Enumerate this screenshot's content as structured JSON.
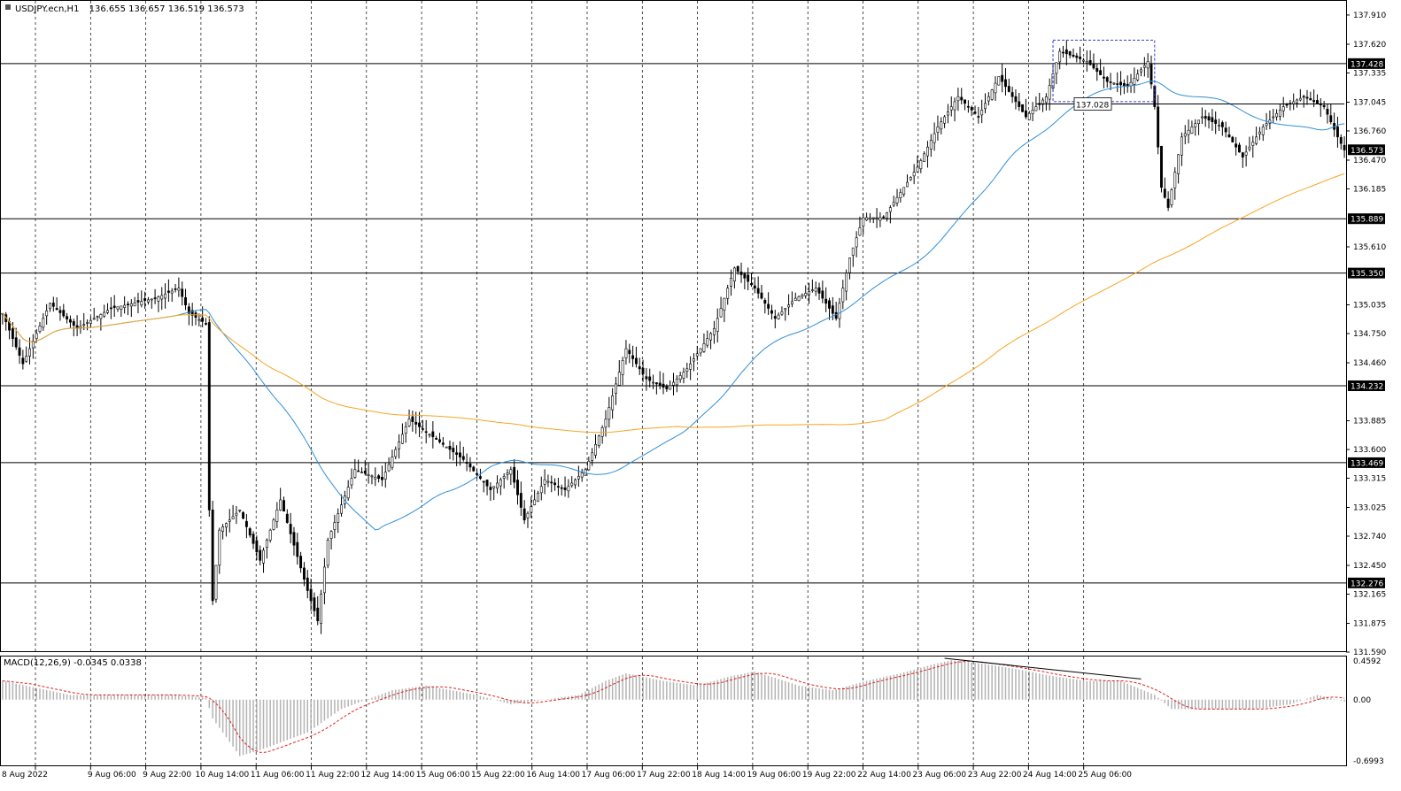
{
  "header": {
    "symbol_label": "USDJPY.ecn,H1",
    "ohlc_text": "136.655 136.657 136.519 136.573"
  },
  "macd": {
    "label": "MACD(12,26,9) -0.0345 0.0338",
    "axis_labels": [
      "0.4592",
      "0.00",
      "-0.6993"
    ]
  },
  "colors": {
    "background": "#ffffff",
    "grid": "#000000",
    "candle_up": "#ffffff",
    "candle_down": "#000000",
    "ma_fast": "#2f8fd8",
    "ma_slow": "#f5a623",
    "macd_hist": "#b3b3b3",
    "macd_signal": "#e02020",
    "box": "#3a3ad8"
  },
  "chart_data": {
    "type": "candlestick",
    "instrument": "USDJPY.ecn",
    "timeframe": "H1",
    "ylim": [
      131.59,
      138.05
    ],
    "price_axis_ticks": [
      "137.910",
      "137.620",
      "137.335",
      "137.045",
      "136.760",
      "136.470",
      "136.185",
      "135.610",
      "135.035",
      "134.750",
      "134.460",
      "133.885",
      "133.600",
      "133.315",
      "133.025",
      "132.740",
      "132.450",
      "132.165",
      "131.875",
      "131.590"
    ],
    "x_labels": [
      "8 Aug 2022",
      "9 Aug 06:00",
      "9 Aug 22:00",
      "10 Aug 14:00",
      "11 Aug 06:00",
      "11 Aug 22:00",
      "12 Aug 14:00",
      "15 Aug 06:00",
      "15 Aug 22:00",
      "16 Aug 14:00",
      "17 Aug 06:00",
      "17 Aug 22:00",
      "18 Aug 14:00",
      "19 Aug 06:00",
      "19 Aug 22:00",
      "22 Aug 14:00",
      "23 Aug 06:00",
      "23 Aug 22:00",
      "24 Aug 14:00",
      "25 Aug 06:00"
    ],
    "horizontal_levels": [
      {
        "price": 137.428,
        "label": "137.428"
      },
      {
        "price": 135.889,
        "label": "135.889"
      },
      {
        "price": 135.35,
        "label": "135.350"
      },
      {
        "price": 134.232,
        "label": "134.232"
      },
      {
        "price": 133.469,
        "label": "133.469"
      },
      {
        "price": 132.276,
        "label": "132.276"
      }
    ],
    "current_price": {
      "price": 136.573,
      "label": "136.573"
    },
    "annotation_price": {
      "price": 137.028,
      "label": "137.028"
    },
    "waypoints": [
      [
        0,
        134.95
      ],
      [
        6,
        134.45
      ],
      [
        14,
        135.05
      ],
      [
        22,
        134.8
      ],
      [
        32,
        135.0
      ],
      [
        45,
        135.1
      ],
      [
        52,
        135.2
      ],
      [
        55,
        134.95
      ],
      [
        60,
        134.85
      ],
      [
        61,
        133.0
      ],
      [
        62,
        132.1
      ],
      [
        64,
        132.8
      ],
      [
        70,
        133.0
      ],
      [
        76,
        132.5
      ],
      [
        82,
        133.1
      ],
      [
        90,
        132.2
      ],
      [
        93,
        131.9
      ],
      [
        96,
        132.7
      ],
      [
        104,
        133.4
      ],
      [
        112,
        133.3
      ],
      [
        120,
        133.9
      ],
      [
        128,
        133.7
      ],
      [
        136,
        133.5
      ],
      [
        144,
        133.2
      ],
      [
        150,
        133.4
      ],
      [
        154,
        132.9
      ],
      [
        160,
        133.3
      ],
      [
        166,
        133.2
      ],
      [
        172,
        133.4
      ],
      [
        178,
        133.9
      ],
      [
        184,
        134.6
      ],
      [
        190,
        134.3
      ],
      [
        196,
        134.2
      ],
      [
        202,
        134.4
      ],
      [
        210,
        134.8
      ],
      [
        216,
        135.4
      ],
      [
        222,
        135.2
      ],
      [
        228,
        134.9
      ],
      [
        234,
        135.1
      ],
      [
        240,
        135.2
      ],
      [
        246,
        134.9
      ],
      [
        250,
        135.5
      ],
      [
        254,
        135.9
      ],
      [
        260,
        135.9
      ],
      [
        264,
        136.1
      ],
      [
        270,
        136.4
      ],
      [
        276,
        136.8
      ],
      [
        282,
        137.1
      ],
      [
        288,
        136.9
      ],
      [
        294,
        137.3
      ],
      [
        302,
        136.9
      ],
      [
        308,
        137.1
      ],
      [
        312,
        137.55
      ],
      [
        320,
        137.45
      ],
      [
        326,
        137.25
      ],
      [
        332,
        137.2
      ],
      [
        338,
        137.45
      ],
      [
        340,
        137.0
      ],
      [
        342,
        136.2
      ],
      [
        344,
        136.0
      ],
      [
        348,
        136.7
      ],
      [
        354,
        136.9
      ],
      [
        360,
        136.8
      ],
      [
        366,
        136.5
      ],
      [
        372,
        136.8
      ],
      [
        378,
        137.0
      ],
      [
        384,
        137.1
      ],
      [
        390,
        137.0
      ],
      [
        394,
        136.7
      ],
      [
        396,
        136.57
      ]
    ],
    "series": [
      {
        "name": "fast MA",
        "type": "line"
      },
      {
        "name": "slow MA",
        "type": "line"
      }
    ],
    "macd_panel": {
      "ylim": [
        -0.6993,
        0.4592
      ],
      "waypoints": [
        [
          0,
          0.2
        ],
        [
          20,
          0.05
        ],
        [
          50,
          0.05
        ],
        [
          60,
          0.02
        ],
        [
          62,
          -0.2
        ],
        [
          70,
          -0.6
        ],
        [
          75,
          -0.55
        ],
        [
          90,
          -0.35
        ],
        [
          100,
          -0.1
        ],
        [
          115,
          0.1
        ],
        [
          125,
          0.15
        ],
        [
          140,
          0.05
        ],
        [
          150,
          -0.05
        ],
        [
          160,
          0.0
        ],
        [
          170,
          0.05
        ],
        [
          178,
          0.2
        ],
        [
          184,
          0.28
        ],
        [
          195,
          0.2
        ],
        [
          205,
          0.15
        ],
        [
          215,
          0.25
        ],
        [
          222,
          0.3
        ],
        [
          235,
          0.15
        ],
        [
          245,
          0.1
        ],
        [
          255,
          0.2
        ],
        [
          265,
          0.28
        ],
        [
          275,
          0.38
        ],
        [
          280,
          0.42
        ],
        [
          290,
          0.38
        ],
        [
          300,
          0.32
        ],
        [
          310,
          0.25
        ],
        [
          320,
          0.2
        ],
        [
          330,
          0.2
        ],
        [
          340,
          0.05
        ],
        [
          345,
          -0.1
        ],
        [
          355,
          -0.1
        ],
        [
          370,
          -0.1
        ],
        [
          380,
          -0.05
        ],
        [
          388,
          0.05
        ],
        [
          396,
          -0.02
        ]
      ]
    }
  }
}
